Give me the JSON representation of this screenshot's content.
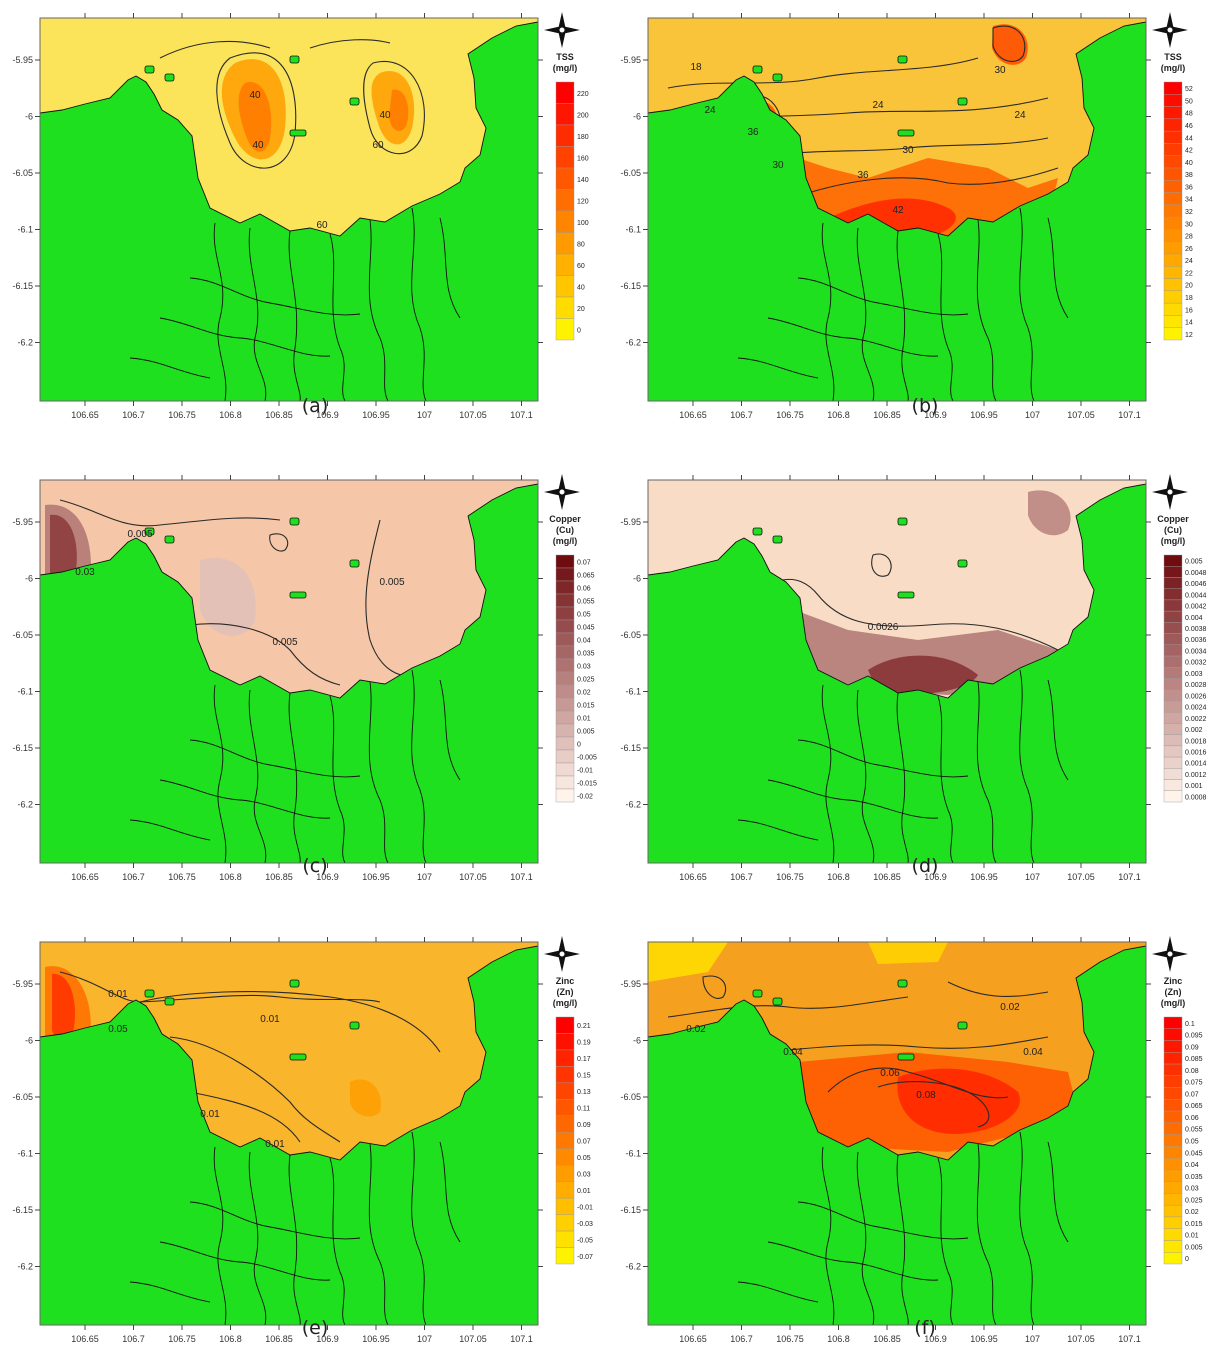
{
  "x_ticks": [
    "106.65",
    "106.7",
    "106.75",
    "106.8",
    "106.85",
    "106.9",
    "106.95",
    "107",
    "107.05",
    "107.1"
  ],
  "y_ticks": [
    "-5.95",
    "-6",
    "-6.05",
    "-6.1",
    "-6.15",
    "-6.2"
  ],
  "colors": {
    "land": "#1fe01f",
    "coast": "#111111"
  },
  "panels": [
    {
      "label": "(a)",
      "legend_title": [
        "TSS",
        "(mg/l)"
      ],
      "legend_values": [
        "220",
        "200",
        "180",
        "160",
        "140",
        "120",
        "100",
        "80",
        "60",
        "40",
        "20",
        "0"
      ],
      "ramp": [
        "#fff200",
        "#ff0000"
      ],
      "background": "#fbe35a",
      "contour_labels": [
        "40",
        "40",
        "60",
        "40",
        "60"
      ]
    },
    {
      "label": "(b)",
      "legend_title": [
        "TSS",
        "(mg/l)"
      ],
      "legend_values": [
        "52",
        "50",
        "48",
        "46",
        "44",
        "42",
        "40",
        "38",
        "36",
        "34",
        "32",
        "30",
        "28",
        "26",
        "24",
        "22",
        "20",
        "18",
        "16",
        "14",
        "12"
      ],
      "ramp": [
        "#fff200",
        "#ff0000"
      ],
      "background": "#f9c43a",
      "contour_labels": [
        "18",
        "24",
        "24",
        "24",
        "36",
        "30",
        "30",
        "30",
        "36",
        "42"
      ]
    },
    {
      "label": "(c)",
      "legend_title": [
        "Copper",
        "(Cu)",
        "(mg/l)"
      ],
      "legend_values": [
        "0.07",
        "0.065",
        "0.06",
        "0.055",
        "0.05",
        "0.045",
        "0.04",
        "0.035",
        "0.03",
        "0.025",
        "0.02",
        "0.015",
        "0.01",
        "0.005",
        "0",
        "-0.005",
        "-0.01",
        "-0.015",
        "-0.02"
      ],
      "ramp": [
        "#fff3ea",
        "#6e0c10"
      ],
      "background": "#f5c7a8",
      "contour_labels": [
        "0.005",
        "0.03",
        "0.005",
        "0.005"
      ]
    },
    {
      "label": "(d)",
      "legend_title": [
        "Copper",
        "(Cu)",
        "(mg/l)"
      ],
      "legend_values": [
        "0.005",
        "0.0048",
        "0.0046",
        "0.0044",
        "0.0042",
        "0.004",
        "0.0038",
        "0.0036",
        "0.0034",
        "0.0032",
        "0.003",
        "0.0028",
        "0.0026",
        "0.0024",
        "0.0022",
        "0.002",
        "0.0018",
        "0.0016",
        "0.0014",
        "0.0012",
        "0.001",
        "0.0008"
      ],
      "ramp": [
        "#fff3ea",
        "#6e0c10"
      ],
      "background": "#f8dcc6",
      "contour_labels": [
        "0.0026"
      ]
    },
    {
      "label": "(e)",
      "legend_title": [
        "Zinc",
        "(Zn)",
        "(mg/l)"
      ],
      "legend_values": [
        "0.21",
        "0.19",
        "0.17",
        "0.15",
        "0.13",
        "0.11",
        "0.09",
        "0.07",
        "0.05",
        "0.03",
        "0.01",
        "-0.01",
        "-0.03",
        "-0.05",
        "-0.07"
      ],
      "ramp": [
        "#fff200",
        "#ff0000"
      ],
      "background": "#f9b52c",
      "contour_labels": [
        "0.01",
        "0.01",
        "0.01",
        "0.01",
        "0.05",
        "0.05"
      ]
    },
    {
      "label": "(f)",
      "legend_title": [
        "Zinc",
        "(Zn)",
        "(mg/l)"
      ],
      "legend_values": [
        "0.1",
        "0.095",
        "0.09",
        "0.085",
        "0.08",
        "0.075",
        "0.07",
        "0.065",
        "0.06",
        "0.055",
        "0.05",
        "0.045",
        "0.04",
        "0.035",
        "0.03",
        "0.025",
        "0.02",
        "0.015",
        "0.01",
        "0.005",
        "0"
      ],
      "ramp": [
        "#fff200",
        "#ff0000"
      ],
      "background": "#f6a020",
      "contour_labels": [
        "0.02",
        "0.02",
        "0.04",
        "0.04",
        "0.06",
        "0.08"
      ]
    }
  ]
}
